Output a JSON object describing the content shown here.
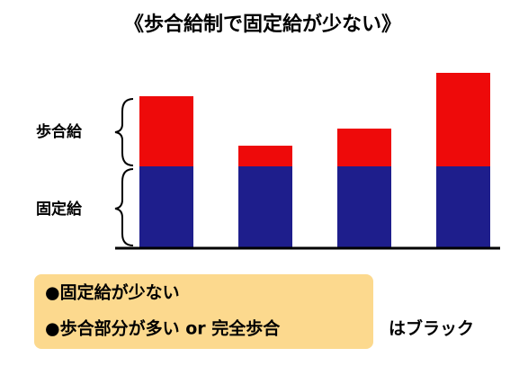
{
  "chart_data": {
    "type": "bar",
    "stacked": true,
    "title": "《歩合給制で固定給が少ない》",
    "categories": [
      null,
      null,
      null,
      null
    ],
    "series": [
      {
        "name": "固定給",
        "color": "#1e1e8c",
        "values": [
          91,
          91,
          91,
          91
        ]
      },
      {
        "name": "歩合給",
        "color": "#ee0a0a",
        "values": [
          78,
          23,
          42,
          104
        ]
      }
    ]
  },
  "note": {
    "lines": [
      "●固定給が少ない",
      "●歩合部分が多い or 完全歩合"
    ],
    "conclusion": "はブラック"
  }
}
